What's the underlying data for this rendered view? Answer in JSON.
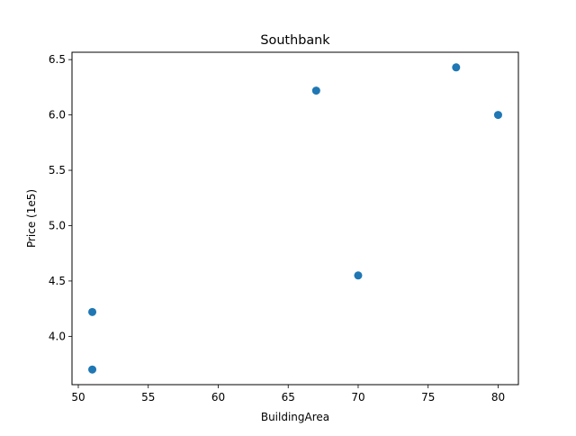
{
  "chart_data": {
    "type": "scatter",
    "title": "Southbank",
    "xlabel": "BuildingArea",
    "ylabel": "Price (1e5)",
    "xlim": [
      49.55,
      81.45
    ],
    "ylim": [
      3.5635,
      6.5665
    ],
    "xticks": [
      50,
      55,
      60,
      65,
      70,
      75,
      80
    ],
    "xtick_labels": [
      "50",
      "55",
      "60",
      "65",
      "70",
      "75",
      "80"
    ],
    "yticks": [
      4.0,
      4.5,
      5.0,
      5.5,
      6.0,
      6.5
    ],
    "ytick_labels": [
      "4.0",
      "4.5",
      "5.0",
      "5.5",
      "6.0",
      "6.5"
    ],
    "grid": false,
    "legend": "none",
    "color": "#1f77b4",
    "series": [
      {
        "points": [
          {
            "x": 51,
            "y": 4.22
          },
          {
            "x": 51,
            "y": 3.7
          },
          {
            "x": 67,
            "y": 6.22
          },
          {
            "x": 70,
            "y": 4.55
          },
          {
            "x": 77,
            "y": 6.43
          },
          {
            "x": 80,
            "y": 6.0
          }
        ]
      }
    ]
  }
}
